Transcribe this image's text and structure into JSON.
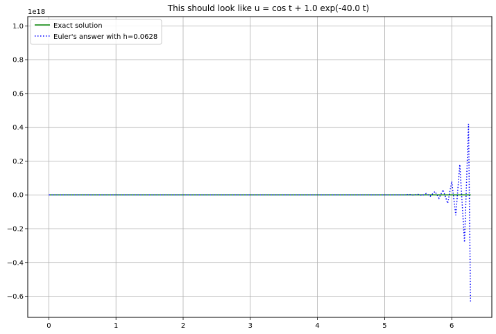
{
  "chart_data": {
    "type": "line",
    "title": "This should look like u = cos t + 1.0 exp(-40.0 t)",
    "xlabel": "",
    "ylabel": "",
    "y_offset_label": "1e18",
    "xlim": [
      -0.314,
      6.597
    ],
    "ylim": [
      -0.725,
      1.055
    ],
    "x_ticks": [
      0,
      1,
      2,
      3,
      4,
      5,
      6
    ],
    "x_tick_labels": [
      "0",
      "1",
      "2",
      "3",
      "4",
      "5",
      "6"
    ],
    "y_ticks": [
      -0.6,
      -0.4,
      -0.2,
      0.0,
      0.2,
      0.4,
      0.6,
      0.8,
      1.0
    ],
    "y_tick_labels": [
      "−0.6",
      "−0.4",
      "−0.2",
      "0.0",
      "0.2",
      "0.4",
      "0.6",
      "0.8",
      "1.0"
    ],
    "grid": true,
    "legend_position": "top-left",
    "series": [
      {
        "name": "Exact solution",
        "style": "solid",
        "color": "#008000",
        "x": [
          0,
          6.283
        ],
        "y": [
          0,
          0
        ]
      },
      {
        "name": "Euler's answer with h=0.0628",
        "style": "dotted",
        "color": "#0000ff",
        "x": [
          0,
          5.3,
          5.37,
          5.43,
          5.49,
          5.56,
          5.62,
          5.68,
          5.75,
          5.81,
          5.87,
          5.94,
          6.0,
          6.06,
          6.12,
          6.19,
          6.25,
          6.28
        ],
        "y": [
          0,
          0,
          0.002,
          -0.002,
          0.004,
          -0.004,
          0.008,
          -0.008,
          0.02,
          -0.02,
          0.03,
          -0.05,
          0.08,
          -0.12,
          0.18,
          -0.28,
          0.42,
          -0.64
        ]
      }
    ]
  }
}
